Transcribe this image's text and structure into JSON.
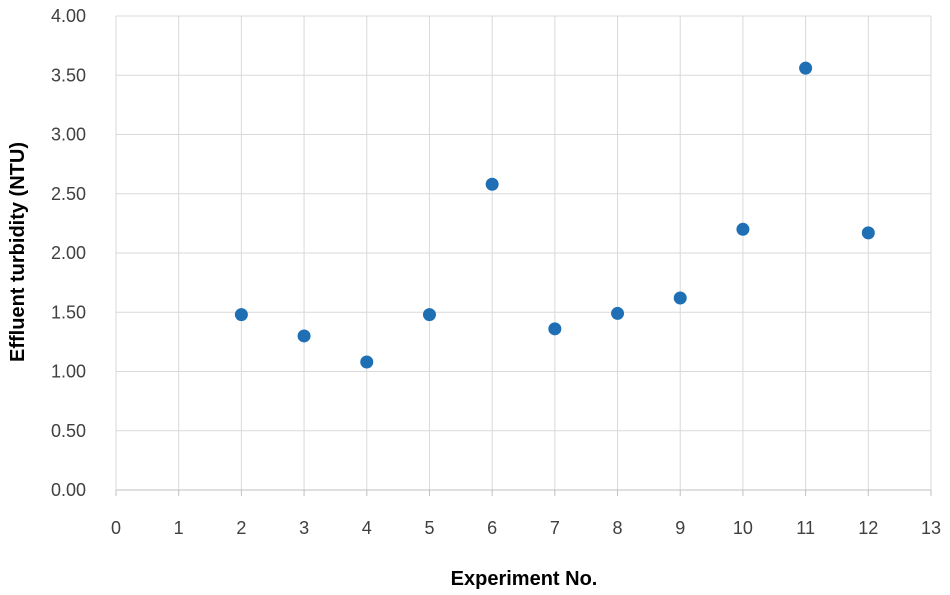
{
  "chart_data": {
    "type": "scatter",
    "title": "",
    "xlabel": "Experiment No.",
    "ylabel": "Effluent turbidity (NTU)",
    "xlim": [
      0,
      13
    ],
    "ylim": [
      0,
      4
    ],
    "x_ticks": [
      0,
      1,
      2,
      3,
      4,
      5,
      6,
      7,
      8,
      9,
      10,
      11,
      12,
      13
    ],
    "x_tick_labels": [
      "0",
      "1",
      "2",
      "3",
      "4",
      "5",
      "6",
      "7",
      "8",
      "9",
      "10",
      "11",
      "12",
      "13"
    ],
    "y_ticks": [
      0,
      0.5,
      1,
      1.5,
      2,
      2.5,
      3,
      3.5,
      4
    ],
    "y_tick_labels": [
      "0.00",
      "0.50",
      "1.00",
      "1.50",
      "2.00",
      "2.50",
      "3.00",
      "3.50",
      "4.00"
    ],
    "grid": true,
    "legend": "none",
    "marker_color": "#1f6fb4",
    "series": [
      {
        "x": [
          2,
          3,
          4,
          5,
          6,
          7,
          8,
          9,
          10,
          11,
          12
        ],
        "y": [
          1.48,
          1.3,
          1.08,
          1.48,
          2.58,
          1.36,
          1.49,
          1.62,
          2.2,
          3.56,
          2.17
        ]
      }
    ]
  }
}
